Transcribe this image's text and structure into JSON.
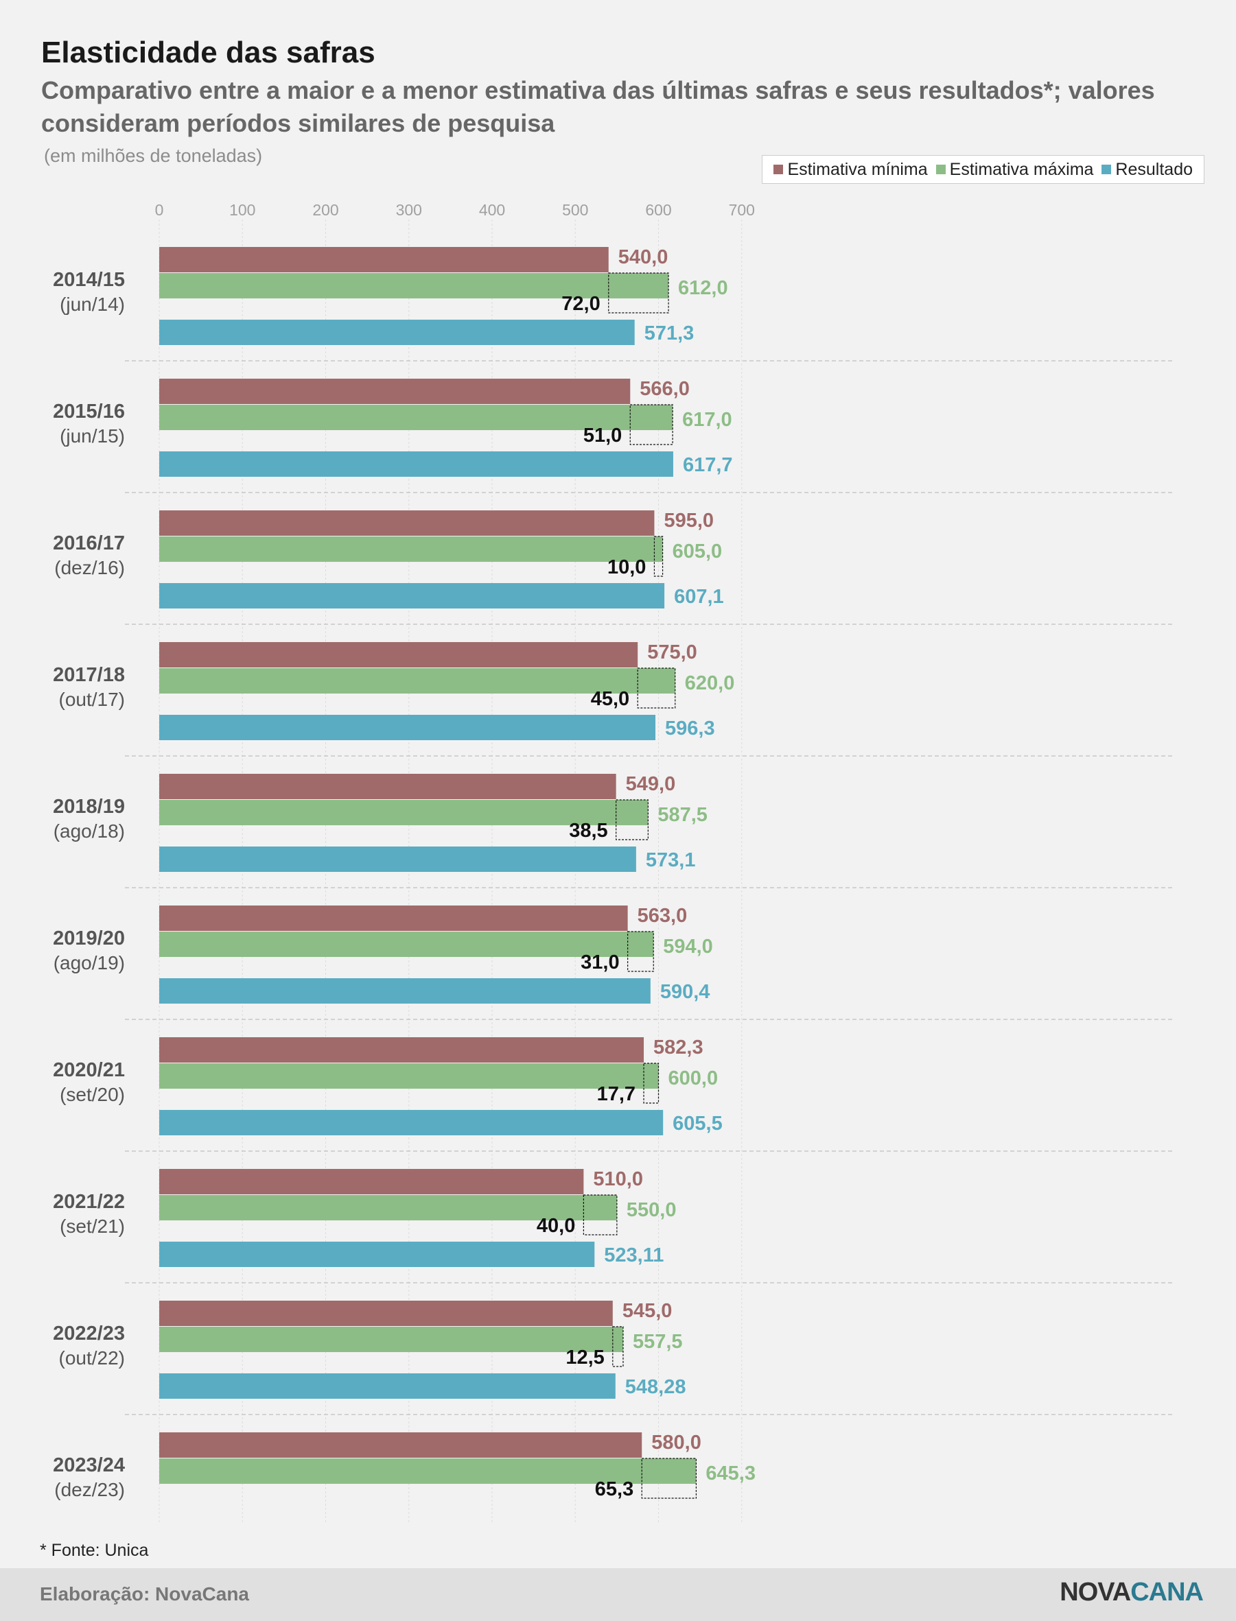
{
  "header": {
    "title": "Elasticidade das safras",
    "subtitle": "Comparativo entre a maior e a menor estimativa das últimas safras e seus resultados*; valores consideram períodos similares de pesquisa",
    "unit_note": "(em milhões de toneladas)"
  },
  "legend": {
    "min_label": "Estimativa mínima",
    "max_label": "Estimativa máxima",
    "result_label": "Resultado"
  },
  "colors": {
    "min": "#a06a6a",
    "max": "#8dbd86",
    "result": "#5aacc2",
    "diff_text": "#111111",
    "tick_text": "#a0a0a0"
  },
  "chart_data": {
    "type": "bar",
    "orientation": "horizontal",
    "xlim": [
      0,
      700
    ],
    "x_ticks": [
      0,
      100,
      200,
      300,
      400,
      500,
      600,
      700
    ],
    "grid": true,
    "legend_position": "top-right",
    "categories": [
      {
        "season": "2014/15",
        "date": "(jun/14)",
        "min": 540.0,
        "max": 612.0,
        "diff": 72.0,
        "result": 571.3,
        "min_label": "540,0",
        "max_label": "612,0",
        "diff_label": "72,0",
        "result_label": "571,3"
      },
      {
        "season": "2015/16",
        "date": "(jun/15)",
        "min": 566.0,
        "max": 617.0,
        "diff": 51.0,
        "result": 617.7,
        "min_label": "566,0",
        "max_label": "617,0",
        "diff_label": "51,0",
        "result_label": "617,7"
      },
      {
        "season": "2016/17",
        "date": "(dez/16)",
        "min": 595.0,
        "max": 605.0,
        "diff": 10.0,
        "result": 607.1,
        "min_label": "595,0",
        "max_label": "605,0",
        "diff_label": "10,0",
        "result_label": "607,1"
      },
      {
        "season": "2017/18",
        "date": "(out/17)",
        "min": 575.0,
        "max": 620.0,
        "diff": 45.0,
        "result": 596.3,
        "min_label": "575,0",
        "max_label": "620,0",
        "diff_label": "45,0",
        "result_label": "596,3"
      },
      {
        "season": "2018/19",
        "date": "(ago/18)",
        "min": 549.0,
        "max": 587.5,
        "diff": 38.5,
        "result": 573.1,
        "min_label": "549,0",
        "max_label": "587,5",
        "diff_label": "38,5",
        "result_label": "573,1"
      },
      {
        "season": "2019/20",
        "date": "(ago/19)",
        "min": 563.0,
        "max": 594.0,
        "diff": 31.0,
        "result": 590.4,
        "min_label": "563,0",
        "max_label": "594,0",
        "diff_label": "31,0",
        "result_label": "590,4"
      },
      {
        "season": "2020/21",
        "date": "(set/20)",
        "min": 582.3,
        "max": 600.0,
        "diff": 17.7,
        "result": 605.5,
        "min_label": "582,3",
        "max_label": "600,0",
        "diff_label": "17,7",
        "result_label": "605,5"
      },
      {
        "season": "2021/22",
        "date": "(set/21)",
        "min": 510.0,
        "max": 550.0,
        "diff": 40.0,
        "result": 523.11,
        "min_label": "510,0",
        "max_label": "550,0",
        "diff_label": "40,0",
        "result_label": "523,11"
      },
      {
        "season": "2022/23",
        "date": "(out/22)",
        "min": 545.0,
        "max": 557.5,
        "diff": 12.5,
        "result": 548.28,
        "min_label": "545,0",
        "max_label": "557,5",
        "diff_label": "12,5",
        "result_label": "548,28"
      },
      {
        "season": "2023/24",
        "date": "(dez/23)",
        "min": 580.0,
        "max": 645.3,
        "diff": 65.3,
        "result": null,
        "min_label": "580,0",
        "max_label": "645,3",
        "diff_label": "65,3",
        "result_label": null
      }
    ]
  },
  "footer": {
    "source": "* Fonte: Unica",
    "credit": "Elaboração: NovaCana",
    "brand_nova": "NOVA",
    "brand_cana": "CANA"
  }
}
